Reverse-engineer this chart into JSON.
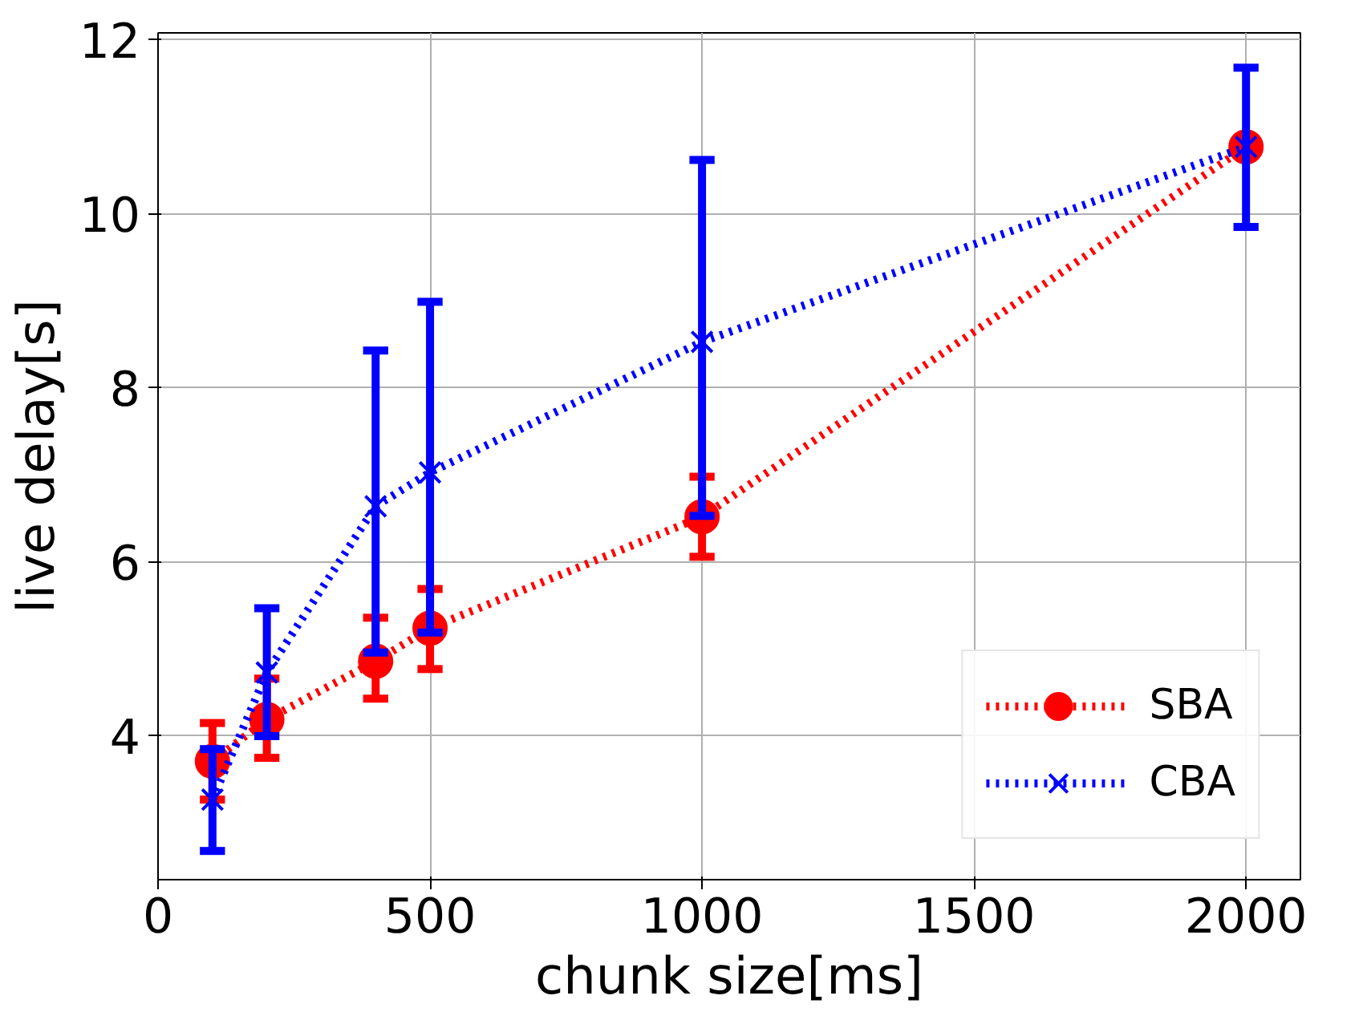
{
  "chart_data": {
    "type": "line",
    "xlabel": "chunk size[ms]",
    "ylabel": "live delay[s]",
    "x": [
      100,
      200,
      400,
      500,
      1000,
      2000
    ],
    "xlim": [
      0,
      2100
    ],
    "xticks": [
      0,
      500,
      1000,
      1500,
      2000
    ],
    "ylim": [
      2.35,
      12.08
    ],
    "yticks": [
      4,
      6,
      8,
      10,
      12
    ],
    "grid": true,
    "legend": "bottom right",
    "line_style": "dotted",
    "series": [
      {
        "name": "SBA",
        "color": "#ff0000",
        "marker": "circle",
        "values": [
          3.71,
          4.19,
          4.86,
          5.24,
          6.52,
          10.77
        ],
        "errors": [
          [
            3.27,
            4.15
          ],
          [
            3.75,
            4.66
          ],
          [
            4.43,
            5.36
          ],
          [
            4.77,
            5.69
          ],
          [
            6.06,
            6.98
          ],
          null
        ]
      },
      {
        "name": "CBA",
        "color": "#0000ff",
        "marker": "cross",
        "values": [
          3.27,
          4.73,
          6.64,
          7.03,
          8.53,
          10.77
        ],
        "errors": [
          [
            2.68,
            3.85
          ],
          [
            4.0,
            5.47
          ],
          [
            4.96,
            8.43
          ],
          [
            5.19,
            8.99
          ],
          [
            6.53,
            10.62
          ],
          [
            9.85,
            11.68
          ]
        ]
      }
    ]
  }
}
